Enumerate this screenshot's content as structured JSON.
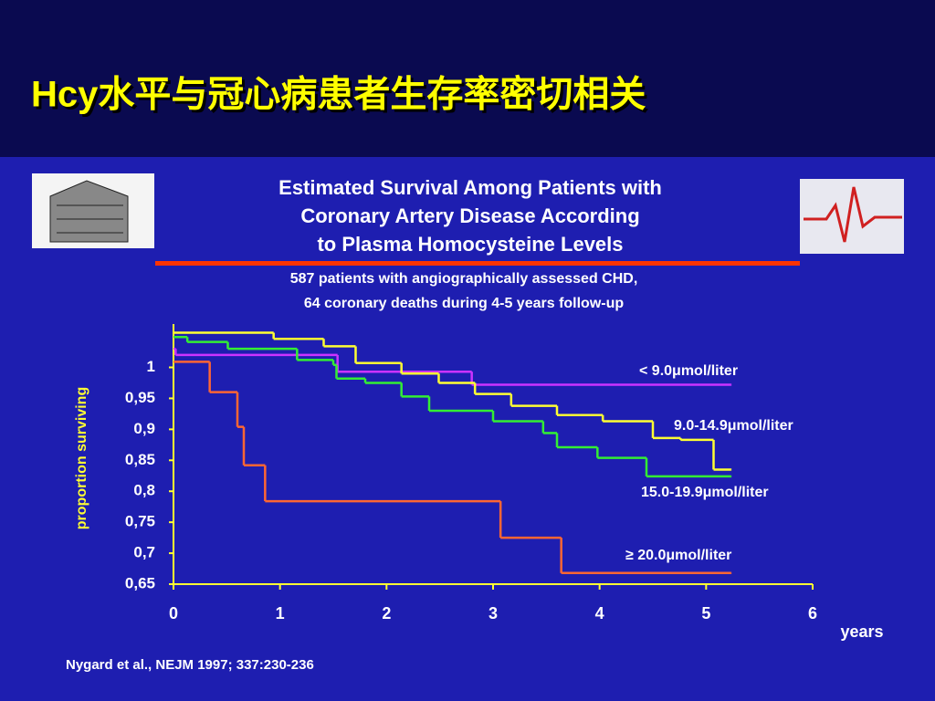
{
  "header": {
    "title": "Hcy水平与冠心病患者生存率密切相关"
  },
  "chart_data": {
    "type": "step",
    "title_lines": [
      "Estimated Survival Among Patients with",
      "Coronary Artery Disease According",
      "to Plasma Homocysteine Levels"
    ],
    "subtitle_lines": [
      "587 patients with angiographically assessed CHD,",
      "64 coronary deaths during 4-5 years follow-up"
    ],
    "y_label": "proportion surviving",
    "x_label": "years",
    "xlim": [
      0,
      6
    ],
    "xticks": [
      0,
      1,
      2,
      3,
      4,
      5,
      6
    ],
    "ylim": [
      0.65,
      1.07
    ],
    "yticks": [
      {
        "value": 0.65,
        "label": "0,65"
      },
      {
        "value": 0.7,
        "label": "0,7"
      },
      {
        "value": 0.75,
        "label": "0,75"
      },
      {
        "value": 0.8,
        "label": "0,8"
      },
      {
        "value": 0.85,
        "label": "0,85"
      },
      {
        "value": 0.9,
        "label": "0,9"
      },
      {
        "value": 0.95,
        "label": "0,95"
      },
      1
    ],
    "series": [
      {
        "name": "< 9.0μmol/liter",
        "color": "#cc33ff",
        "x": [
          0,
          0.02,
          1.54,
          2.8,
          5.23
        ],
        "values": [
          1.03,
          1.02,
          0.993,
          0.972,
          0.972
        ]
      },
      {
        "name": "9.0-14.9μmol/liter",
        "color": "#ffff33",
        "x": [
          0,
          0.94,
          1.41,
          1.71,
          2.14,
          2.49,
          2.83,
          3.17,
          3.6,
          4.03,
          4.5,
          4.76,
          5.07,
          5.23
        ],
        "values": [
          1.056,
          1.046,
          1.034,
          1.007,
          0.99,
          0.975,
          0.957,
          0.938,
          0.923,
          0.913,
          0.886,
          0.883,
          0.835,
          0.835
        ]
      },
      {
        "name": "15.0-19.9μmol/liter",
        "color": "#33ee33",
        "x": [
          0,
          0.13,
          0.51,
          1.16,
          1.5,
          1.53,
          1.8,
          2.14,
          2.4,
          3.0,
          3.47,
          3.6,
          3.98,
          4.44,
          5.23
        ],
        "values": [
          1.049,
          1.041,
          1.03,
          1.012,
          1.004,
          0.982,
          0.975,
          0.953,
          0.93,
          0.913,
          0.894,
          0.871,
          0.854,
          0.824,
          0.824
        ]
      },
      {
        "name": "≥ 20.0μmol/liter",
        "color": "#ff6633",
        "x": [
          0,
          0.34,
          0.6,
          0.66,
          0.86,
          3.07,
          3.64,
          5.23
        ],
        "values": [
          1.009,
          0.96,
          0.904,
          0.842,
          0.784,
          0.725,
          0.668,
          0.668
        ]
      }
    ],
    "citation": "Nygard et al., NEJM 1997; 337:230-236"
  }
}
